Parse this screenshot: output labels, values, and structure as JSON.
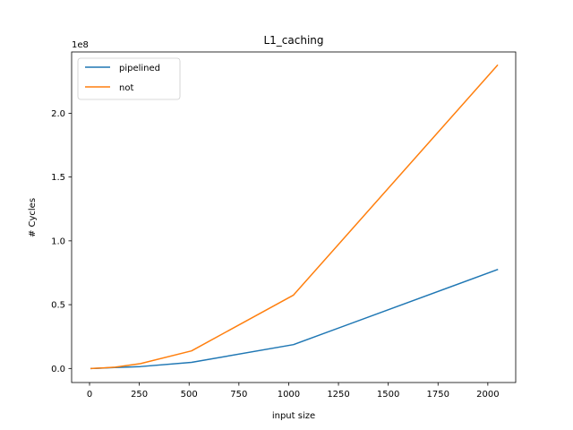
{
  "chart_data": {
    "type": "line",
    "title": "L1_caching",
    "xlabel": "input size",
    "ylabel": "# Cycles",
    "y_offset_label": "1e8",
    "y_scale": 100000000,
    "xlim": [
      -90,
      2140
    ],
    "ylim": [
      -11000000,
      248000000
    ],
    "x_ticks": [
      0,
      250,
      500,
      750,
      1000,
      1250,
      1500,
      1750,
      2000
    ],
    "x_tick_labels": [
      "0",
      "250",
      "500",
      "750",
      "1000",
      "1250",
      "1500",
      "1750",
      "2000"
    ],
    "y_ticks": [
      0,
      50000000,
      100000000,
      150000000,
      200000000
    ],
    "y_tick_labels": [
      "0.0",
      "0.5",
      "1.0",
      "1.5",
      "2.0"
    ],
    "grid": false,
    "legend_position": "top-left",
    "series": [
      {
        "name": "pipelined",
        "color": "#1f77b4",
        "x": [
          8,
          16,
          32,
          64,
          128,
          256,
          512,
          1024,
          2048
        ],
        "y": [
          0,
          20000,
          90000,
          300000,
          800000,
          1500000,
          4800000,
          18700000,
          77500000
        ]
      },
      {
        "name": "not",
        "color": "#ff7f0e",
        "x": [
          8,
          16,
          32,
          64,
          128,
          256,
          512,
          1024,
          2048
        ],
        "y": [
          0,
          40000,
          200000,
          400000,
          1000000,
          3800000,
          13800000,
          57500000,
          237500000
        ]
      }
    ]
  }
}
